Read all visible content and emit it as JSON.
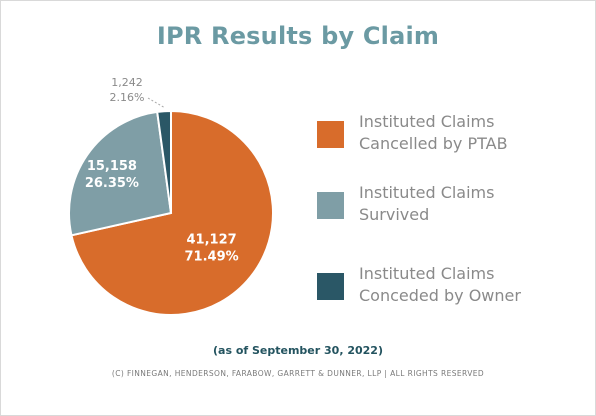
{
  "header": {
    "title": "IPR Results by Claim"
  },
  "chart_data": {
    "type": "pie",
    "title": "IPR Results by Claim",
    "slices": [
      {
        "name": "Instituted Claims Cancelled by PTAB",
        "value": 41127,
        "value_label": "41,127",
        "percent_label": "71.49%",
        "color": "#d86c2b"
      },
      {
        "name": "Instituted Claims Survived",
        "value": 15158,
        "value_label": "15,158",
        "percent_label": "26.35%",
        "color": "#7f9ea6"
      },
      {
        "name": "Instituted Claims Conceded by Owner",
        "value": 1242,
        "value_label": "1,242",
        "percent_label": "2.16%",
        "color": "#2a5766"
      }
    ],
    "legend_position": "right"
  },
  "legend": [
    {
      "label": "Instituted Claims\nCancelled by PTAB",
      "color": "#d86c2b"
    },
    {
      "label": "Instituted Claims\nSurvived",
      "color": "#7f9ea6"
    },
    {
      "label": "Instituted Claims\nConceded by Owner",
      "color": "#2a5766"
    }
  ],
  "footer": {
    "as_of": "(as of September 30, 2022)",
    "copyright": "(C) FINNEGAN, HENDERSON, FARABOW, GARRETT & DUNNER, LLP | ALL RIGHTS RESERVED"
  },
  "colors": {
    "title": "#6b9aa3",
    "legend_text": "#8a8a8a",
    "as_of_text": "#23535f"
  }
}
